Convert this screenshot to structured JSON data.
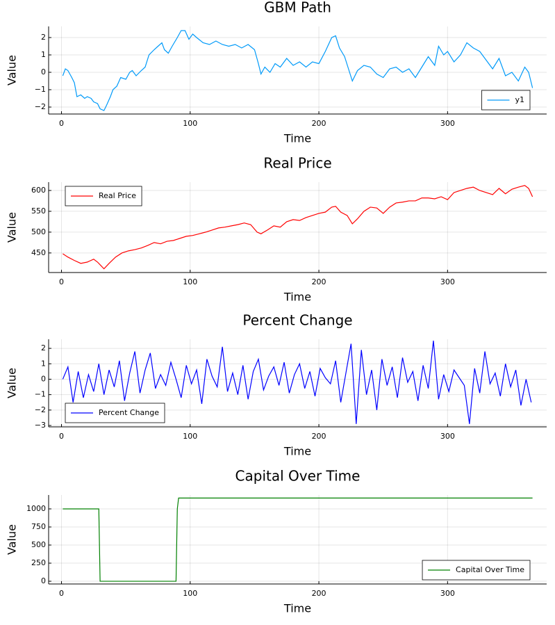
{
  "chart_data": [
    {
      "type": "line",
      "title": "GBM Path",
      "xlabel": "Time",
      "ylabel": "Value",
      "x": [
        1,
        3,
        5,
        8,
        10,
        12,
        15,
        18,
        20,
        23,
        25,
        28,
        30,
        33,
        35,
        38,
        40,
        43,
        46,
        50,
        53,
        55,
        58,
        62,
        65,
        68,
        72,
        75,
        78,
        80,
        83,
        86,
        90,
        93,
        96,
        99,
        102,
        105,
        110,
        115,
        120,
        125,
        130,
        135,
        140,
        145,
        150,
        153,
        155,
        158,
        162,
        166,
        170,
        175,
        180,
        185,
        190,
        195,
        200,
        205,
        210,
        213,
        216,
        220,
        223,
        226,
        230,
        235,
        240,
        245,
        250,
        255,
        260,
        265,
        270,
        275,
        280,
        285,
        290,
        293,
        297,
        300,
        305,
        310,
        315,
        320,
        325,
        330,
        335,
        340,
        345,
        350,
        355,
        360,
        363,
        366
      ],
      "series": [
        {
          "name": "y1",
          "color": "#009af9",
          "values": [
            -0.2,
            0.2,
            0.1,
            -0.3,
            -0.6,
            -1.4,
            -1.3,
            -1.5,
            -1.4,
            -1.5,
            -1.7,
            -1.8,
            -2.1,
            -2.2,
            -1.9,
            -1.4,
            -1.0,
            -0.8,
            -0.3,
            -0.4,
            0.0,
            0.1,
            -0.2,
            0.1,
            0.3,
            1.0,
            1.3,
            1.5,
            1.7,
            1.3,
            1.1,
            1.5,
            2.0,
            2.4,
            2.4,
            1.9,
            2.2,
            2.0,
            1.7,
            1.6,
            1.8,
            1.6,
            1.5,
            1.6,
            1.4,
            1.6,
            1.3,
            0.5,
            -0.1,
            0.3,
            0.0,
            0.5,
            0.3,
            0.8,
            0.4,
            0.6,
            0.3,
            0.6,
            0.5,
            1.2,
            2.0,
            2.1,
            1.4,
            0.9,
            0.2,
            -0.5,
            0.1,
            0.4,
            0.3,
            -0.1,
            -0.3,
            0.2,
            0.3,
            0.0,
            0.2,
            -0.3,
            0.3,
            0.9,
            0.4,
            1.5,
            1.0,
            1.2,
            0.6,
            1.0,
            1.7,
            1.4,
            1.2,
            0.7,
            0.2,
            0.8,
            -0.2,
            0.0,
            -0.5,
            0.3,
            0.0,
            -0.9
          ]
        }
      ],
      "xlim": [
        -10,
        377
      ],
      "ylim": [
        -2.4,
        2.64
      ],
      "xticks": [
        0,
        100,
        200,
        300
      ],
      "yticks": [
        {
          "value": -2,
          "label": "−2"
        },
        {
          "value": -1,
          "label": "−1"
        },
        0,
        1,
        2
      ],
      "legend": "bottom-right",
      "grid": true
    },
    {
      "type": "line",
      "title": "Real Price",
      "xlabel": "Time",
      "ylabel": "Value",
      "x": [
        1,
        5,
        10,
        15,
        20,
        25,
        28,
        33,
        37,
        42,
        47,
        52,
        57,
        62,
        67,
        72,
        77,
        82,
        87,
        92,
        97,
        102,
        107,
        112,
        117,
        122,
        127,
        132,
        137,
        142,
        147,
        152,
        155,
        160,
        165,
        170,
        175,
        180,
        185,
        190,
        195,
        200,
        205,
        210,
        213,
        217,
        222,
        226,
        230,
        235,
        240,
        245,
        250,
        255,
        260,
        265,
        270,
        275,
        280,
        285,
        290,
        295,
        300,
        305,
        310,
        315,
        320,
        325,
        330,
        335,
        340,
        345,
        350,
        355,
        360,
        363,
        366
      ],
      "series": [
        {
          "name": "Real Price",
          "color": "#ff0000",
          "values": [
            448,
            440,
            432,
            425,
            428,
            435,
            428,
            412,
            425,
            440,
            450,
            455,
            458,
            462,
            468,
            475,
            472,
            478,
            480,
            485,
            490,
            492,
            496,
            500,
            505,
            510,
            512,
            515,
            518,
            522,
            518,
            500,
            496,
            505,
            515,
            512,
            525,
            530,
            528,
            535,
            540,
            545,
            548,
            560,
            562,
            548,
            540,
            520,
            532,
            550,
            560,
            558,
            545,
            560,
            570,
            572,
            575,
            575,
            582,
            582,
            580,
            585,
            578,
            595,
            600,
            605,
            608,
            600,
            595,
            590,
            605,
            592,
            603,
            608,
            612,
            605,
            585
          ]
        }
      ],
      "xlim": [
        -10,
        377
      ],
      "ylim": [
        403,
        620
      ],
      "xticks": [
        0,
        100,
        200,
        300
      ],
      "yticks": [
        450,
        500,
        550,
        600
      ],
      "legend": "top-left",
      "grid": true
    },
    {
      "type": "line",
      "title": "Percent Change",
      "xlabel": "Time",
      "ylabel": "Value",
      "x": [
        1,
        5,
        9,
        13,
        17,
        21,
        25,
        29,
        33,
        37,
        41,
        45,
        49,
        53,
        57,
        61,
        65,
        69,
        73,
        77,
        81,
        85,
        89,
        93,
        97,
        101,
        105,
        109,
        113,
        117,
        121,
        125,
        129,
        133,
        137,
        141,
        145,
        149,
        153,
        157,
        161,
        165,
        169,
        173,
        177,
        181,
        185,
        189,
        193,
        197,
        201,
        205,
        209,
        213,
        217,
        221,
        225,
        229,
        233,
        237,
        241,
        245,
        249,
        253,
        257,
        261,
        265,
        269,
        273,
        277,
        281,
        285,
        289,
        293,
        297,
        301,
        305,
        309,
        313,
        317,
        321,
        325,
        329,
        333,
        337,
        341,
        345,
        349,
        353,
        357,
        361,
        365
      ],
      "series": [
        {
          "name": "Percent Change",
          "color": "#0000ff",
          "values": [
            0.0,
            0.8,
            -1.5,
            0.5,
            -1.2,
            0.3,
            -0.8,
            1.0,
            -1.0,
            0.6,
            -0.5,
            1.2,
            -1.4,
            0.4,
            1.8,
            -0.9,
            0.6,
            1.7,
            -0.6,
            0.3,
            -0.4,
            1.1,
            0.0,
            -1.2,
            0.9,
            -0.3,
            0.6,
            -1.6,
            1.3,
            0.2,
            -0.5,
            2.1,
            -0.8,
            0.4,
            -1.0,
            0.9,
            -1.3,
            0.5,
            1.3,
            -0.7,
            0.2,
            0.8,
            -0.4,
            1.1,
            -0.9,
            0.3,
            1.0,
            -0.6,
            0.5,
            -1.1,
            0.7,
            0.1,
            -0.3,
            1.2,
            -1.5,
            0.4,
            2.3,
            -2.9,
            1.9,
            -1.0,
            0.6,
            -2.0,
            1.3,
            -0.4,
            0.8,
            -1.2,
            1.4,
            -0.2,
            0.5,
            -1.4,
            0.9,
            -0.6,
            2.5,
            -1.3,
            0.3,
            -0.8,
            0.6,
            0.1,
            -0.4,
            -2.9,
            0.7,
            -0.9,
            1.8,
            -0.3,
            0.4,
            -1.1,
            1.0,
            -0.5,
            0.6,
            -1.7,
            0.0,
            -1.5
          ]
        }
      ],
      "xlim": [
        -10,
        377
      ],
      "ylim": [
        -3.09,
        2.59
      ],
      "xticks": [
        0,
        100,
        200,
        300
      ],
      "yticks": [
        {
          "value": -3,
          "label": "−3"
        },
        {
          "value": -2,
          "label": "−2"
        },
        {
          "value": -1,
          "label": "−1"
        },
        0,
        1,
        2
      ],
      "legend": "bottom-left",
      "grid": true
    },
    {
      "type": "line",
      "title": "Capital Over Time",
      "xlabel": "Time",
      "ylabel": "Value",
      "x": [
        1,
        29,
        30,
        89,
        90,
        91,
        366
      ],
      "series": [
        {
          "name": "Capital Over Time",
          "color": "#008000",
          "values": [
            1000,
            1000,
            0,
            0,
            1000,
            1150,
            1150
          ]
        }
      ],
      "xlim": [
        -10,
        377
      ],
      "ylim": [
        -38,
        1192
      ],
      "xticks": [
        0,
        100,
        200,
        300
      ],
      "yticks": [
        0,
        250,
        500,
        750,
        1000
      ],
      "legend": "bottom-right",
      "grid": true
    }
  ]
}
